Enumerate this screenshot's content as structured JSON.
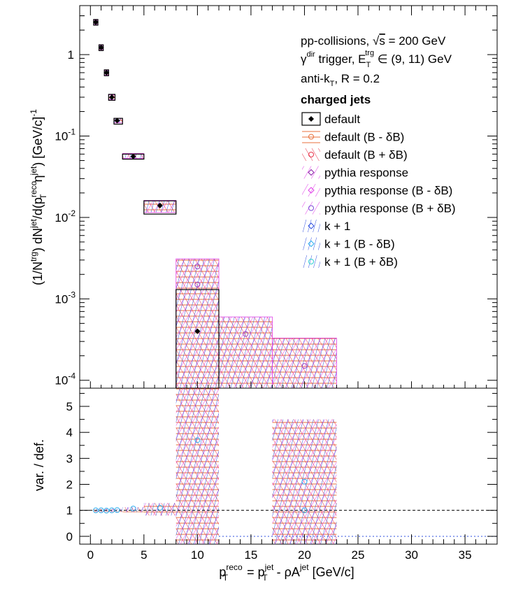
{
  "chart_data": [
    {
      "panel": "top",
      "type": "scatter",
      "y_scale": "log",
      "xlim": [
        -1,
        38
      ],
      "ylim": [
        8e-05,
        4
      ],
      "ylabel": {
        "parts": [
          "(1/N",
          "trg",
          ") dN",
          "jet",
          "/d(p",
          "reco",
          "T",
          " η",
          "jet",
          ") [GeV/c]",
          "-1"
        ]
      },
      "ytick_labels": [
        {
          "value": 1,
          "label": "1"
        },
        {
          "value": 0.1,
          "label": "10",
          "exp": "-1"
        },
        {
          "value": 0.01,
          "label": "10",
          "exp": "-2"
        },
        {
          "value": 0.001,
          "label": "10",
          "exp": "-3"
        },
        {
          "value": 0.0001,
          "label": "10",
          "exp": "-4"
        }
      ],
      "annotations": {
        "line1_a": "pp-collisions, ",
        "line1_sqrt": "√",
        "line1_b": "s",
        "line1_c": " = 200 GeV",
        "line2_a": "γ",
        "line2_sup": "dir",
        "line2_b": " trigger, E",
        "line2_sub": "T",
        "line2_sup2": "trg",
        "line2_c": " ∈ (9, 11) GeV",
        "line3_a": "anti-k",
        "line3_sub": "T",
        "line3_b": ", R = 0.2",
        "line4": "charged jets"
      },
      "legend": {
        "placement": "top-right",
        "entries": [
          {
            "label": "default",
            "color": "#000000",
            "marker": "diamond-filled"
          },
          {
            "label": "default (B - δB)",
            "color": "#e8713c",
            "marker": "circle-open"
          },
          {
            "label": "default (B + δB)",
            "color": "#e8334a",
            "marker": "circle-open"
          },
          {
            "label": "pythia response",
            "color": "#8a1fa8",
            "marker": "diamond-open"
          },
          {
            "label": "pythia response (B - δB)",
            "color": "#e040e8",
            "marker": "diamond-open"
          },
          {
            "label": "pythia response (B + δB)",
            "color": "#7b4cd8",
            "marker": "circle-open"
          },
          {
            "label": "k + 1",
            "color": "#3050e0",
            "marker": "diamond-open"
          },
          {
            "label": "k + 1 (B - δB)",
            "color": "#30b0f0",
            "marker": "diamond-open"
          },
          {
            "label": "k + 1 (B + δB)",
            "color": "#30d0d0",
            "marker": "circle-open"
          }
        ]
      },
      "bins": [
        {
          "x": 0.5,
          "xlo": 0.3,
          "xhi": 0.7,
          "y": 2.5,
          "ylo": 2.3,
          "yhi": 2.7
        },
        {
          "x": 1.0,
          "xlo": 0.8,
          "xhi": 1.2,
          "y": 1.22,
          "ylo": 1.12,
          "yhi": 1.32
        },
        {
          "x": 1.5,
          "xlo": 1.3,
          "xhi": 1.7,
          "y": 0.6,
          "ylo": 0.55,
          "yhi": 0.65
        },
        {
          "x": 2.0,
          "xlo": 1.7,
          "xhi": 2.3,
          "y": 0.3,
          "ylo": 0.275,
          "yhi": 0.325
        },
        {
          "x": 2.5,
          "xlo": 2.2,
          "xhi": 3.0,
          "y": 0.155,
          "ylo": 0.14,
          "yhi": 0.165
        },
        {
          "x": 4.0,
          "xlo": 3.0,
          "xhi": 5.0,
          "y": 0.056,
          "ylo": 0.052,
          "yhi": 0.06
        },
        {
          "x": 6.5,
          "xlo": 5.0,
          "xhi": 8.0,
          "y": 0.014,
          "ylo": 0.011,
          "yhi": 0.016
        },
        {
          "x": 10.0,
          "xlo": 8.0,
          "xhi": 12.0,
          "y": 0.0004,
          "ylo": 8e-05,
          "yhi": 0.0013
        }
      ],
      "variation_bands": [
        {
          "xlo": 0.3,
          "xhi": 0.7,
          "ylo": 2.35,
          "yhi": 2.65
        },
        {
          "xlo": 0.8,
          "xhi": 1.2,
          "ylo": 1.15,
          "yhi": 1.3
        },
        {
          "xlo": 1.3,
          "xhi": 1.7,
          "ylo": 0.56,
          "yhi": 0.64
        },
        {
          "xlo": 1.7,
          "xhi": 2.3,
          "ylo": 0.28,
          "yhi": 0.32
        },
        {
          "xlo": 2.2,
          "xhi": 3.0,
          "ylo": 0.145,
          "yhi": 0.165
        },
        {
          "xlo": 3.0,
          "xhi": 5.0,
          "ylo": 0.053,
          "yhi": 0.061
        },
        {
          "xlo": 5.0,
          "xhi": 8.0,
          "ylo": 0.0115,
          "yhi": 0.0162
        },
        {
          "xlo": 8.0,
          "xhi": 12.0,
          "ylo": 8e-05,
          "yhi": 0.0031
        },
        {
          "xlo": 12.0,
          "xhi": 17.0,
          "ylo": 8e-05,
          "yhi": 0.0006
        },
        {
          "xlo": 17.0,
          "xhi": 23.0,
          "ylo": 8e-05,
          "yhi": 0.00033
        }
      ],
      "variation_points": [
        {
          "x": 10.0,
          "y": 0.0025
        },
        {
          "x": 10.0,
          "y": 0.0015
        },
        {
          "x": 14.5,
          "y": 0.00037
        },
        {
          "x": 20.0,
          "y": 0.00015
        }
      ]
    },
    {
      "panel": "bottom",
      "type": "scatter",
      "xlim": [
        -1,
        38
      ],
      "ylim": [
        -0.3,
        5.7
      ],
      "ylabel": "var. / def.",
      "yticks": [
        0,
        1,
        2,
        3,
        4,
        5
      ],
      "xticks": [
        0,
        5,
        10,
        15,
        20,
        25,
        30,
        35
      ],
      "xlabel": {
        "parts": [
          "p",
          "reco",
          "T",
          " = p",
          "jet",
          "T",
          " - ρA",
          "jet",
          " [GeV/c]"
        ]
      },
      "reference_line": 1,
      "ratio_bands": [
        {
          "xlo": 0.3,
          "xhi": 3.0,
          "ylo": 0.94,
          "yhi": 1.06
        },
        {
          "xlo": 3.0,
          "xhi": 5.0,
          "ylo": 0.93,
          "yhi": 1.12
        },
        {
          "xlo": 5.0,
          "xhi": 8.0,
          "ylo": 0.8,
          "yhi": 1.28
        },
        {
          "xlo": 8.0,
          "xhi": 12.0,
          "ylo": -0.3,
          "yhi": 5.7
        },
        {
          "xlo": 17.0,
          "xhi": 23.0,
          "ylo": -0.3,
          "yhi": 4.5
        }
      ],
      "ratio_points": [
        {
          "x": 0.5,
          "y": 1.0
        },
        {
          "x": 1.0,
          "y": 1.0
        },
        {
          "x": 1.5,
          "y": 0.99
        },
        {
          "x": 2.0,
          "y": 1.0
        },
        {
          "x": 2.5,
          "y": 1.01
        },
        {
          "x": 4.0,
          "y": 1.07
        },
        {
          "x": 6.5,
          "y": 1.1
        },
        {
          "x": 10.0,
          "y": 3.7
        },
        {
          "x": 20.0,
          "y": 2.1
        },
        {
          "x": 20.0,
          "y": 1.0
        }
      ]
    }
  ]
}
